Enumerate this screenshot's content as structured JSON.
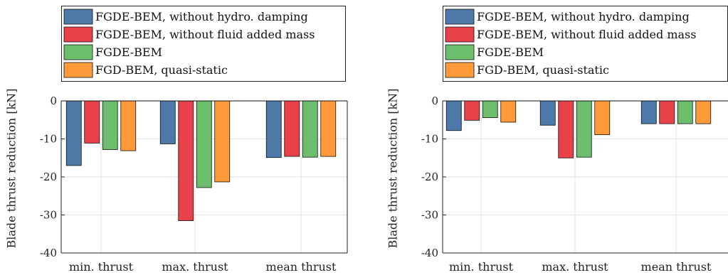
{
  "chart_data": [
    {
      "type": "bar",
      "categories": [
        "min. thrust",
        "max. thrust",
        "mean thrust"
      ],
      "ylabel": "Blade thrust reduction [kN]",
      "ylim": [
        -40,
        0
      ],
      "yticks": [
        0,
        -10,
        -20,
        -30,
        -40
      ],
      "grid": true,
      "legend": "top, outside plot area",
      "series": [
        {
          "name": "FGDE-BEM, without hydro. damping",
          "color": "#4C79A8",
          "values": [
            -17.0,
            -11.3,
            -14.9
          ]
        },
        {
          "name": "FGDE-BEM, without fluid added mass",
          "color": "#E8414A",
          "values": [
            -11.1,
            -31.5,
            -14.6
          ]
        },
        {
          "name": "FGDE-BEM",
          "color": "#6CBE6C",
          "values": [
            -12.8,
            -22.8,
            -14.8
          ]
        },
        {
          "name": "FGD-BEM, quasi-static",
          "color": "#FF9A3A",
          "values": [
            -13.1,
            -21.3,
            -14.6
          ]
        }
      ]
    },
    {
      "type": "bar",
      "categories": [
        "min. thrust",
        "max. thrust",
        "mean thrust"
      ],
      "ylabel": "Blade thrust reduction [kN]",
      "ylim": [
        -40,
        0
      ],
      "yticks": [
        0,
        -10,
        -20,
        -30,
        -40
      ],
      "grid": true,
      "legend": "top, outside plot area",
      "series": [
        {
          "name": "FGDE-BEM, without hydro. damping",
          "color": "#4C79A8",
          "values": [
            -7.8,
            -6.4,
            -6.0
          ]
        },
        {
          "name": "FGDE-BEM, without fluid added mass",
          "color": "#E8414A",
          "values": [
            -5.1,
            -15.0,
            -6.0
          ]
        },
        {
          "name": "FGDE-BEM",
          "color": "#6CBE6C",
          "values": [
            -4.4,
            -14.8,
            -6.0
          ]
        },
        {
          "name": "FGD-BEM, quasi-static",
          "color": "#FF9A3A",
          "values": [
            -5.6,
            -8.9,
            -6.0
          ]
        }
      ]
    }
  ]
}
